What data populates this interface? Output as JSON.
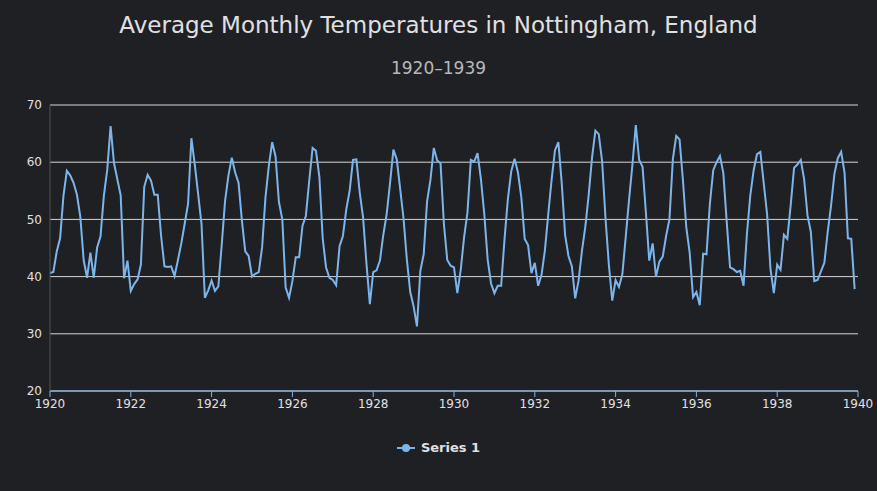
{
  "chart_data": {
    "type": "line",
    "title": "Average Monthly Temperatures in Nottingham, England",
    "subtitle": "1920–1939",
    "x": [
      1920,
      1920.083,
      1920.167,
      1920.25,
      1920.333,
      1920.417,
      1920.5,
      1920.583,
      1920.667,
      1920.75,
      1920.833,
      1920.917,
      1921,
      1921.083,
      1921.167,
      1921.25,
      1921.333,
      1921.417,
      1921.5,
      1921.583,
      1921.667,
      1921.75,
      1921.833,
      1921.917,
      1922,
      1922.083,
      1922.167,
      1922.25,
      1922.333,
      1922.417,
      1922.5,
      1922.583,
      1922.667,
      1922.75,
      1922.833,
      1922.917,
      1923,
      1923.083,
      1923.167,
      1923.25,
      1923.333,
      1923.417,
      1923.5,
      1923.583,
      1923.667,
      1923.75,
      1923.833,
      1923.917,
      1924,
      1924.083,
      1924.167,
      1924.25,
      1924.333,
      1924.417,
      1924.5,
      1924.583,
      1924.667,
      1924.75,
      1924.833,
      1924.917,
      1925,
      1925.083,
      1925.167,
      1925.25,
      1925.333,
      1925.417,
      1925.5,
      1925.583,
      1925.667,
      1925.75,
      1925.833,
      1925.917,
      1926,
      1926.083,
      1926.167,
      1926.25,
      1926.333,
      1926.417,
      1926.5,
      1926.583,
      1926.667,
      1926.75,
      1926.833,
      1926.917,
      1927,
      1927.083,
      1927.167,
      1927.25,
      1927.333,
      1927.417,
      1927.5,
      1927.583,
      1927.667,
      1927.75,
      1927.833,
      1927.917,
      1928,
      1928.083,
      1928.167,
      1928.25,
      1928.333,
      1928.417,
      1928.5,
      1928.583,
      1928.667,
      1928.75,
      1928.833,
      1928.917,
      1929,
      1929.083,
      1929.167,
      1929.25,
      1929.333,
      1929.417,
      1929.5,
      1929.583,
      1929.667,
      1929.75,
      1929.833,
      1929.917,
      1930,
      1930.083,
      1930.167,
      1930.25,
      1930.333,
      1930.417,
      1930.5,
      1930.583,
      1930.667,
      1930.75,
      1930.833,
      1930.917,
      1931,
      1931.083,
      1931.167,
      1931.25,
      1931.333,
      1931.417,
      1931.5,
      1931.583,
      1931.667,
      1931.75,
      1931.833,
      1931.917,
      1932,
      1932.083,
      1932.167,
      1932.25,
      1932.333,
      1932.417,
      1932.5,
      1932.583,
      1932.667,
      1932.75,
      1932.833,
      1932.917,
      1933,
      1933.083,
      1933.167,
      1933.25,
      1933.333,
      1933.417,
      1933.5,
      1933.583,
      1933.667,
      1933.75,
      1933.833,
      1933.917,
      1934,
      1934.083,
      1934.167,
      1934.25,
      1934.333,
      1934.417,
      1934.5,
      1934.583,
      1934.667,
      1934.75,
      1934.833,
      1934.917,
      1935,
      1935.083,
      1935.167,
      1935.25,
      1935.333,
      1935.417,
      1935.5,
      1935.583,
      1935.667,
      1935.75,
      1935.833,
      1935.917,
      1936,
      1936.083,
      1936.167,
      1936.25,
      1936.333,
      1936.417,
      1936.5,
      1936.583,
      1936.667,
      1936.75,
      1936.833,
      1936.917,
      1937,
      1937.083,
      1937.167,
      1937.25,
      1937.333,
      1937.417,
      1937.5,
      1937.583,
      1937.667,
      1937.75,
      1937.833,
      1937.917,
      1938,
      1938.083,
      1938.167,
      1938.25,
      1938.333,
      1938.417,
      1938.5,
      1938.583,
      1938.667,
      1938.75,
      1938.833,
      1938.917,
      1939,
      1939.083,
      1939.167,
      1939.25,
      1939.333,
      1939.417,
      1939.5,
      1939.583,
      1939.667,
      1939.75,
      1939.833,
      1939.917
    ],
    "series": [
      {
        "name": "Series 1",
        "color": "#7cb5ec",
        "values": [
          40.6,
          40.8,
          44.4,
          46.7,
          54.1,
          58.5,
          57.7,
          56.4,
          54.3,
          50.5,
          42.9,
          39.8,
          44.2,
          39.8,
          45.1,
          47.0,
          54.1,
          58.7,
          66.3,
          59.9,
          57.0,
          54.2,
          39.7,
          42.8,
          37.5,
          38.7,
          39.5,
          42.1,
          55.7,
          57.8,
          56.8,
          54.3,
          54.3,
          47.1,
          41.8,
          41.7,
          41.8,
          40.1,
          42.9,
          45.8,
          49.2,
          52.7,
          64.2,
          59.6,
          54.4,
          49.2,
          36.3,
          37.6,
          39.3,
          37.5,
          38.3,
          45.5,
          53.2,
          57.7,
          60.8,
          58.2,
          56.4,
          49.8,
          44.4,
          43.6,
          40.0,
          40.5,
          40.8,
          45.1,
          53.8,
          59.4,
          63.5,
          61.0,
          53.0,
          50.0,
          38.1,
          36.3,
          39.2,
          43.4,
          43.4,
          48.9,
          50.6,
          56.8,
          62.5,
          62.0,
          57.5,
          46.7,
          41.6,
          39.8,
          39.4,
          38.5,
          45.3,
          47.1,
          51.7,
          55.0,
          60.4,
          60.5,
          54.7,
          50.3,
          42.3,
          35.2,
          40.8,
          41.1,
          42.8,
          47.3,
          50.9,
          56.4,
          62.2,
          60.5,
          55.4,
          50.2,
          43.0,
          37.3,
          34.8,
          31.3,
          41.0,
          43.9,
          53.1,
          56.9,
          62.5,
          60.3,
          59.8,
          49.2,
          42.9,
          41.9,
          41.6,
          37.1,
          41.2,
          46.9,
          51.2,
          60.4,
          60.1,
          61.6,
          57.0,
          50.9,
          43.0,
          38.8,
          37.1,
          38.4,
          38.4,
          46.5,
          53.5,
          58.4,
          60.6,
          58.2,
          53.8,
          46.6,
          45.5,
          40.6,
          42.4,
          38.4,
          40.3,
          44.6,
          50.9,
          57.0,
          62.1,
          63.5,
          56.3,
          47.3,
          43.6,
          41.8,
          36.2,
          39.3,
          44.5,
          48.7,
          54.2,
          60.8,
          65.5,
          64.9,
          60.1,
          50.2,
          42.1,
          35.8,
          39.4,
          38.2,
          40.4,
          46.9,
          53.4,
          59.6,
          66.5,
          60.4,
          59.2,
          51.2,
          42.8,
          45.8,
          40.0,
          42.6,
          43.5,
          47.1,
          50.0,
          60.5,
          64.6,
          64.0,
          56.8,
          48.6,
          44.2,
          36.4,
          37.3,
          35.0,
          44.0,
          43.9,
          52.7,
          58.6,
          60.0,
          61.1,
          58.1,
          49.6,
          41.6,
          41.3,
          40.8,
          41.0,
          38.4,
          47.4,
          54.1,
          58.6,
          61.4,
          61.8,
          56.3,
          50.9,
          41.4,
          37.1,
          42.1,
          41.2,
          47.3,
          46.6,
          52.4,
          59.0,
          59.6,
          60.4,
          57.0,
          50.7,
          47.8,
          39.2,
          39.4,
          40.9,
          42.4,
          47.8,
          52.4,
          58.0,
          60.7,
          61.8,
          58.2,
          46.7,
          46.6,
          37.8
        ]
      }
    ],
    "xlim": [
      1920,
      1940
    ],
    "xticks": [
      1920,
      1922,
      1924,
      1926,
      1928,
      1930,
      1932,
      1934,
      1936,
      1938,
      1940
    ],
    "ylim": [
      20,
      70
    ],
    "yticks": [
      20,
      30,
      40,
      50,
      60,
      70
    ],
    "grid": true,
    "legend": "bottom"
  }
}
